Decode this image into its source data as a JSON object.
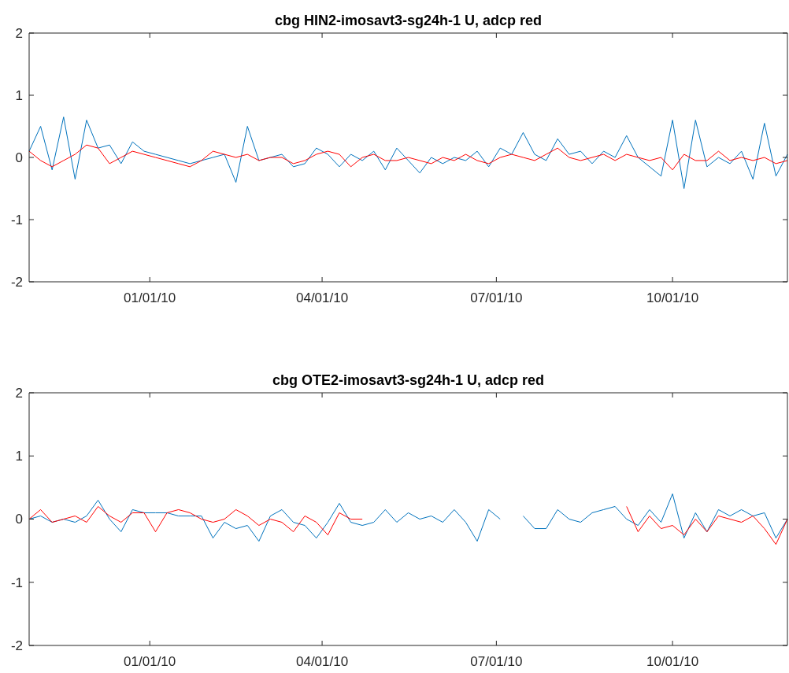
{
  "chart_data": [
    {
      "type": "line",
      "title": "cbg HIN2-imosavt3-sg24h-1 U, adcp red",
      "xlim": [
        "2009-10-30",
        "2010-11-30"
      ],
      "xticks": [
        {
          "value": "2010-01-01",
          "label": "01/01/10"
        },
        {
          "value": "2010-04-01",
          "label": "04/01/10"
        },
        {
          "value": "2010-07-01",
          "label": "07/01/10"
        },
        {
          "value": "2010-10-01",
          "label": "10/01/10"
        }
      ],
      "ylim": [
        -2,
        2
      ],
      "yticks": [
        -2,
        -1,
        0,
        1,
        2
      ],
      "grid": false,
      "x": [
        "2009-10-30",
        "2009-11-05",
        "2009-11-11",
        "2009-11-17",
        "2009-11-23",
        "2009-11-29",
        "2009-12-05",
        "2009-12-11",
        "2009-12-17",
        "2009-12-23",
        "2009-12-29",
        "2010-01-04",
        "2010-01-10",
        "2010-01-16",
        "2010-01-22",
        "2010-01-28",
        "2010-02-03",
        "2010-02-09",
        "2010-02-15",
        "2010-02-21",
        "2010-02-27",
        "2010-03-05",
        "2010-03-11",
        "2010-03-17",
        "2010-03-23",
        "2010-03-29",
        "2010-04-04",
        "2010-04-10",
        "2010-04-16",
        "2010-04-22",
        "2010-04-28",
        "2010-05-04",
        "2010-05-10",
        "2010-05-16",
        "2010-05-22",
        "2010-05-28",
        "2010-06-03",
        "2010-06-09",
        "2010-06-15",
        "2010-06-21",
        "2010-06-27",
        "2010-07-03",
        "2010-07-09",
        "2010-07-15",
        "2010-07-21",
        "2010-07-27",
        "2010-08-02",
        "2010-08-08",
        "2010-08-14",
        "2010-08-20",
        "2010-08-26",
        "2010-09-01",
        "2010-09-07",
        "2010-09-13",
        "2010-09-19",
        "2010-09-25",
        "2010-10-01",
        "2010-10-07",
        "2010-10-13",
        "2010-10-19",
        "2010-10-25",
        "2010-10-31",
        "2010-11-06",
        "2010-11-12",
        "2010-11-18",
        "2010-11-24",
        "2010-11-30"
      ],
      "series": [
        {
          "color": "#0072bd",
          "values": [
            0.1,
            0.5,
            -0.2,
            0.65,
            -0.35,
            0.6,
            0.15,
            0.2,
            -0.1,
            0.25,
            0.1,
            0.05,
            0.0,
            -0.05,
            -0.1,
            -0.05,
            0.0,
            0.05,
            -0.4,
            0.5,
            -0.05,
            0.0,
            0.05,
            -0.15,
            -0.1,
            0.15,
            0.05,
            -0.15,
            0.05,
            -0.05,
            0.1,
            -0.2,
            0.15,
            -0.05,
            -0.25,
            0.0,
            -0.1,
            0.0,
            -0.05,
            0.1,
            -0.15,
            0.15,
            0.05,
            0.4,
            0.05,
            -0.05,
            0.3,
            0.05,
            0.1,
            -0.1,
            0.1,
            0.0,
            0.35,
            0.0,
            -0.15,
            -0.3,
            0.6,
            -0.5,
            0.6,
            -0.15,
            0.0,
            -0.1,
            0.1,
            -0.35,
            0.55,
            -0.3,
            0.05
          ]
        },
        {
          "color": "#ff0000",
          "values": [
            0.1,
            -0.05,
            -0.15,
            -0.05,
            0.05,
            0.2,
            0.15,
            -0.1,
            0.0,
            0.1,
            0.05,
            0.0,
            -0.05,
            -0.1,
            -0.15,
            -0.05,
            0.1,
            0.05,
            0.0,
            0.05,
            -0.05,
            0.0,
            0.0,
            -0.1,
            -0.05,
            0.05,
            0.1,
            0.05,
            -0.15,
            0.0,
            0.05,
            -0.05,
            -0.05,
            0.0,
            -0.05,
            -0.1,
            0.0,
            -0.05,
            0.05,
            -0.05,
            -0.1,
            0.0,
            0.05,
            0.0,
            -0.05,
            0.05,
            0.15,
            0.0,
            -0.05,
            0.0,
            0.05,
            -0.05,
            0.05,
            0.0,
            -0.05,
            0.0,
            -0.2,
            0.05,
            -0.05,
            -0.05,
            0.1,
            -0.05,
            0.0,
            -0.05,
            0.0,
            -0.1,
            -0.05
          ]
        }
      ]
    },
    {
      "type": "line",
      "title": "cbg OTE2-imosavt3-sg24h-1 U, adcp red",
      "xlim": [
        "2009-10-30",
        "2010-11-30"
      ],
      "xticks": [
        {
          "value": "2010-01-01",
          "label": "01/01/10"
        },
        {
          "value": "2010-04-01",
          "label": "04/01/10"
        },
        {
          "value": "2010-07-01",
          "label": "07/01/10"
        },
        {
          "value": "2010-10-01",
          "label": "10/01/10"
        }
      ],
      "ylim": [
        -2,
        2
      ],
      "yticks": [
        -2,
        -1,
        0,
        1,
        2
      ],
      "grid": false,
      "x": [
        "2009-10-30",
        "2009-11-05",
        "2009-11-11",
        "2009-11-17",
        "2009-11-23",
        "2009-11-29",
        "2009-12-05",
        "2009-12-11",
        "2009-12-17",
        "2009-12-23",
        "2009-12-29",
        "2010-01-04",
        "2010-01-10",
        "2010-01-16",
        "2010-01-22",
        "2010-01-28",
        "2010-02-03",
        "2010-02-09",
        "2010-02-15",
        "2010-02-21",
        "2010-02-27",
        "2010-03-05",
        "2010-03-11",
        "2010-03-17",
        "2010-03-23",
        "2010-03-29",
        "2010-04-04",
        "2010-04-10",
        "2010-04-16",
        "2010-04-22",
        "2010-04-28",
        "2010-05-04",
        "2010-05-10",
        "2010-05-16",
        "2010-05-22",
        "2010-05-28",
        "2010-06-03",
        "2010-06-09",
        "2010-06-15",
        "2010-06-21",
        "2010-06-27",
        "2010-07-03",
        "2010-07-09",
        "2010-07-15",
        "2010-07-21",
        "2010-07-27",
        "2010-08-02",
        "2010-08-08",
        "2010-08-14",
        "2010-08-20",
        "2010-08-26",
        "2010-09-01",
        "2010-09-07",
        "2010-09-13",
        "2010-09-19",
        "2010-09-25",
        "2010-10-01",
        "2010-10-07",
        "2010-10-13",
        "2010-10-19",
        "2010-10-25",
        "2010-10-31",
        "2010-11-06",
        "2010-11-12",
        "2010-11-18",
        "2010-11-24",
        "2010-11-30"
      ],
      "series": [
        {
          "color": "#0072bd",
          "values": [
            0.0,
            0.05,
            -0.05,
            0.0,
            -0.05,
            0.05,
            0.3,
            0.0,
            -0.2,
            0.15,
            0.1,
            0.1,
            0.1,
            0.05,
            0.05,
            0.05,
            -0.3,
            -0.05,
            -0.15,
            -0.1,
            -0.35,
            0.05,
            0.15,
            -0.05,
            -0.1,
            -0.3,
            -0.05,
            0.25,
            -0.05,
            -0.1,
            -0.05,
            0.15,
            -0.05,
            0.1,
            0.0,
            0.05,
            -0.05,
            0.15,
            -0.05,
            -0.35,
            0.15,
            0.0,
            null,
            0.05,
            -0.15,
            -0.15,
            0.15,
            0.0,
            -0.05,
            0.1,
            0.15,
            0.2,
            0.0,
            -0.1,
            0.15,
            -0.05,
            0.4,
            -0.3,
            0.1,
            -0.2,
            0.15,
            0.05,
            0.15,
            0.05,
            0.1,
            -0.3,
            0.0
          ]
        },
        {
          "color": "#ff0000",
          "values": [
            0.0,
            0.15,
            -0.05,
            0.0,
            0.05,
            -0.05,
            0.2,
            0.05,
            -0.05,
            0.1,
            0.1,
            -0.2,
            0.1,
            0.15,
            0.1,
            0.0,
            -0.05,
            0.0,
            0.15,
            0.05,
            -0.1,
            0.0,
            -0.05,
            -0.2,
            0.05,
            -0.05,
            -0.25,
            0.1,
            0.0,
            0.0,
            null,
            null,
            null,
            null,
            null,
            null,
            null,
            null,
            null,
            null,
            null,
            null,
            null,
            null,
            null,
            null,
            null,
            null,
            null,
            null,
            null,
            null,
            0.2,
            -0.2,
            0.05,
            -0.15,
            -0.1,
            -0.25,
            0.0,
            -0.2,
            0.05,
            0.0,
            -0.05,
            0.05,
            -0.15,
            -0.4,
            0.0
          ]
        }
      ]
    }
  ]
}
